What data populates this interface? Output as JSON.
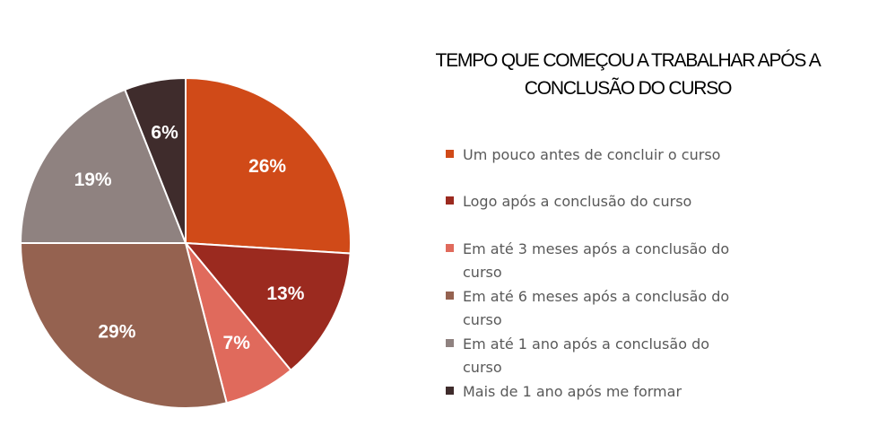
{
  "chart_data": {
    "type": "pie",
    "title": "TEMPO QUE COMEÇOU A TRABALHAR APÓS A CONCLUSÃO DO CURSO",
    "start_angle_deg": 0,
    "direction": "clockwise",
    "legend_position": "right",
    "slices": [
      {
        "label": "Um pouco antes de concluir o curso",
        "value": 26,
        "display": "26%",
        "color": "#d04a18"
      },
      {
        "label": "Logo após a conclusão do curso",
        "value": 13,
        "display": "13%",
        "color": "#9b2a1f"
      },
      {
        "label": "Em até 3 meses após a conclusão do curso",
        "value": 7,
        "display": "7%",
        "color": "#e06a5c"
      },
      {
        "label": "Em até 6 meses após a conclusão do curso",
        "value": 29,
        "display": "29%",
        "color": "#956250"
      },
      {
        "label": "Em até 1 ano após a conclusão do curso",
        "value": 19,
        "display": "19%",
        "color": "#8f8280"
      },
      {
        "label": "Mais de 1 ano após me formar",
        "value": 6,
        "display": "6%",
        "color": "#3f2c2c"
      }
    ]
  }
}
